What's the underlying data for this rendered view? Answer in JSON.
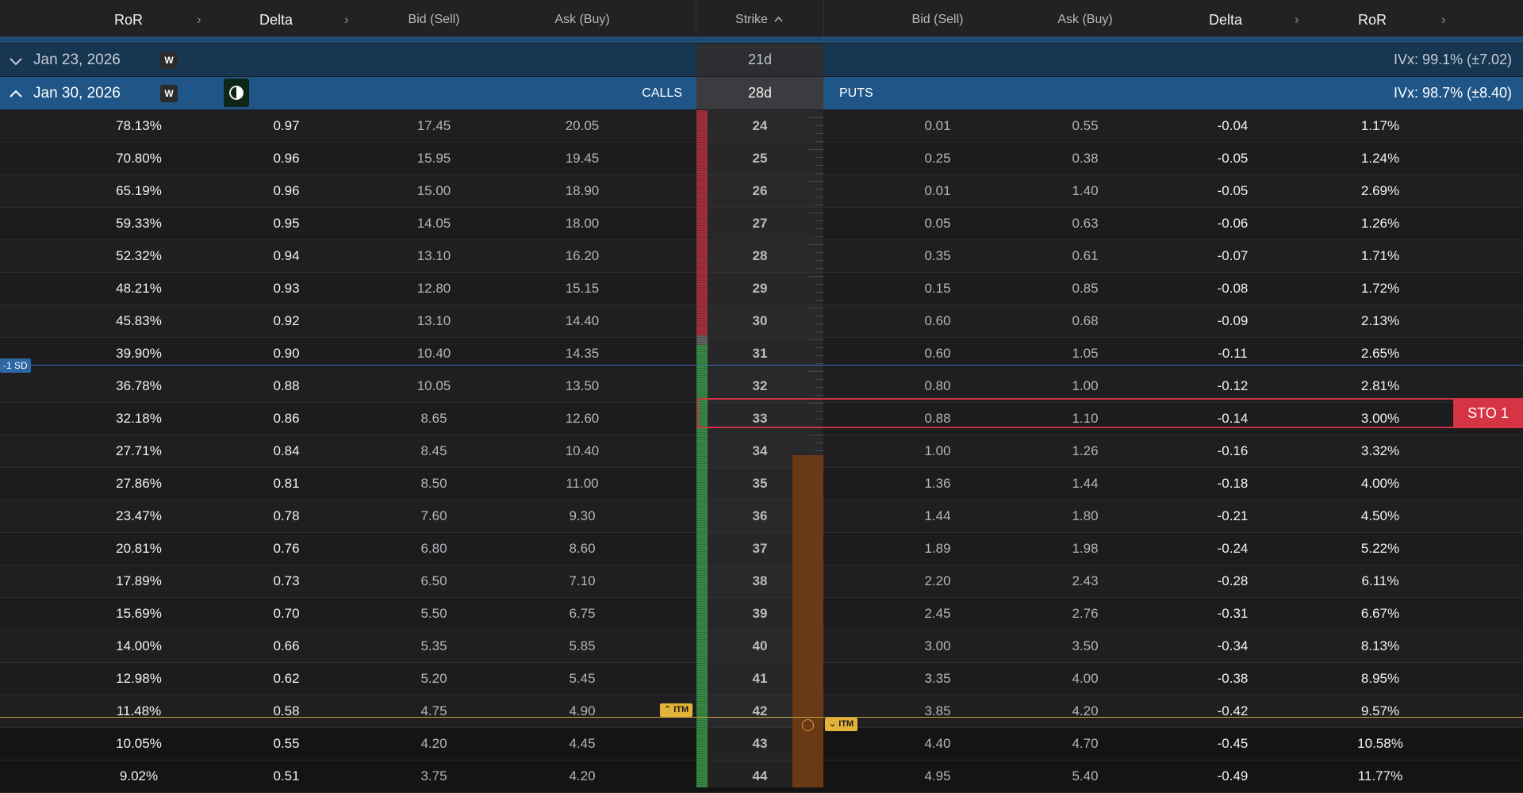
{
  "header": {
    "calls_ror": "RoR",
    "calls_delta": "Delta",
    "calls_bid": "Bid (Sell)",
    "calls_ask": "Ask (Buy)",
    "strike": "Strike",
    "puts_bid": "Bid (Sell)",
    "puts_ask": "Ask (Buy)",
    "puts_delta": "Delta",
    "puts_ror": "RoR",
    "chevron": "›",
    "sort_arrow": "^"
  },
  "expirations": [
    {
      "label": "Jan 23, 2026",
      "badge": "W",
      "dte": "21d",
      "ivx": "IVx: 99.1% (±7.02)",
      "expanded": false
    },
    {
      "label": "Jan 30, 2026",
      "badge": "W",
      "dte": "28d",
      "ivx": "IVx: 98.7% (±8.40)",
      "expanded": true,
      "calls_label": "CALLS",
      "puts_label": "PUTS"
    }
  ],
  "rows": [
    {
      "ror": "78.13%",
      "delta": "0.97",
      "bid": "17.45",
      "ask": "20.05",
      "strike": "24",
      "pbid": "0.01",
      "pask": "0.55",
      "pdelta": "-0.04",
      "pror": "1.17%"
    },
    {
      "ror": "70.80%",
      "delta": "0.96",
      "bid": "15.95",
      "ask": "19.45",
      "strike": "25",
      "pbid": "0.25",
      "pask": "0.38",
      "pdelta": "-0.05",
      "pror": "1.24%"
    },
    {
      "ror": "65.19%",
      "delta": "0.96",
      "bid": "15.00",
      "ask": "18.90",
      "strike": "26",
      "pbid": "0.01",
      "pask": "1.40",
      "pdelta": "-0.05",
      "pror": "2.69%"
    },
    {
      "ror": "59.33%",
      "delta": "0.95",
      "bid": "14.05",
      "ask": "18.00",
      "strike": "27",
      "pbid": "0.05",
      "pask": "0.63",
      "pdelta": "-0.06",
      "pror": "1.26%"
    },
    {
      "ror": "52.32%",
      "delta": "0.94",
      "bid": "13.10",
      "ask": "16.20",
      "strike": "28",
      "pbid": "0.35",
      "pask": "0.61",
      "pdelta": "-0.07",
      "pror": "1.71%"
    },
    {
      "ror": "48.21%",
      "delta": "0.93",
      "bid": "12.80",
      "ask": "15.15",
      "strike": "29",
      "pbid": "0.15",
      "pask": "0.85",
      "pdelta": "-0.08",
      "pror": "1.72%"
    },
    {
      "ror": "45.83%",
      "delta": "0.92",
      "bid": "13.10",
      "ask": "14.40",
      "strike": "30",
      "pbid": "0.60",
      "pask": "0.68",
      "pdelta": "-0.09",
      "pror": "2.13%"
    },
    {
      "ror": "39.90%",
      "delta": "0.90",
      "bid": "10.40",
      "ask": "14.35",
      "strike": "31",
      "pbid": "0.60",
      "pask": "1.05",
      "pdelta": "-0.11",
      "pror": "2.65%"
    },
    {
      "ror": "36.78%",
      "delta": "0.88",
      "bid": "10.05",
      "ask": "13.50",
      "strike": "32",
      "pbid": "0.80",
      "pask": "1.00",
      "pdelta": "-0.12",
      "pror": "2.81%"
    },
    {
      "ror": "32.18%",
      "delta": "0.86",
      "bid": "8.65",
      "ask": "12.60",
      "strike": "33",
      "pbid": "0.88",
      "pask": "1.10",
      "pdelta": "-0.14",
      "pror": "3.00%"
    },
    {
      "ror": "27.71%",
      "delta": "0.84",
      "bid": "8.45",
      "ask": "10.40",
      "strike": "34",
      "pbid": "1.00",
      "pask": "1.26",
      "pdelta": "-0.16",
      "pror": "3.32%"
    },
    {
      "ror": "27.86%",
      "delta": "0.81",
      "bid": "8.50",
      "ask": "11.00",
      "strike": "35",
      "pbid": "1.36",
      "pask": "1.44",
      "pdelta": "-0.18",
      "pror": "4.00%"
    },
    {
      "ror": "23.47%",
      "delta": "0.78",
      "bid": "7.60",
      "ask": "9.30",
      "strike": "36",
      "pbid": "1.44",
      "pask": "1.80",
      "pdelta": "-0.21",
      "pror": "4.50%"
    },
    {
      "ror": "20.81%",
      "delta": "0.76",
      "bid": "6.80",
      "ask": "8.60",
      "strike": "37",
      "pbid": "1.89",
      "pask": "1.98",
      "pdelta": "-0.24",
      "pror": "5.22%"
    },
    {
      "ror": "17.89%",
      "delta": "0.73",
      "bid": "6.50",
      "ask": "7.10",
      "strike": "38",
      "pbid": "2.20",
      "pask": "2.43",
      "pdelta": "-0.28",
      "pror": "6.11%"
    },
    {
      "ror": "15.69%",
      "delta": "0.70",
      "bid": "5.50",
      "ask": "6.75",
      "strike": "39",
      "pbid": "2.45",
      "pask": "2.76",
      "pdelta": "-0.31",
      "pror": "6.67%"
    },
    {
      "ror": "14.00%",
      "delta": "0.66",
      "bid": "5.35",
      "ask": "5.85",
      "strike": "40",
      "pbid": "3.00",
      "pask": "3.50",
      "pdelta": "-0.34",
      "pror": "8.13%"
    },
    {
      "ror": "12.98%",
      "delta": "0.62",
      "bid": "5.20",
      "ask": "5.45",
      "strike": "41",
      "pbid": "3.35",
      "pask": "4.00",
      "pdelta": "-0.38",
      "pror": "8.95%"
    },
    {
      "ror": "11.48%",
      "delta": "0.58",
      "bid": "4.75",
      "ask": "4.90",
      "strike": "42",
      "pbid": "3.85",
      "pask": "4.20",
      "pdelta": "-0.42",
      "pror": "9.57%"
    },
    {
      "ror": "10.05%",
      "delta": "0.55",
      "bid": "4.20",
      "ask": "4.45",
      "strike": "43",
      "pbid": "4.40",
      "pask": "4.70",
      "pdelta": "-0.45",
      "pror": "10.58%"
    },
    {
      "ror": "9.02%",
      "delta": "0.51",
      "bid": "3.75",
      "ask": "4.20",
      "strike": "44",
      "pbid": "4.95",
      "pask": "5.40",
      "pdelta": "-0.49",
      "pror": "11.77%"
    }
  ],
  "markers": {
    "sd_label": "-1 SD",
    "itm_label": "ITM",
    "sto_label": "STO 1",
    "selected_strike": "33"
  },
  "colors": {
    "prob_red": "#b8323f",
    "prob_green": "#3a9a48",
    "prob_gray": "#6a6a6e",
    "selection": "#c9323f",
    "itm": "#e3b23a",
    "sd_line": "#3b6fa5",
    "expiry_active": "#1f5587"
  }
}
